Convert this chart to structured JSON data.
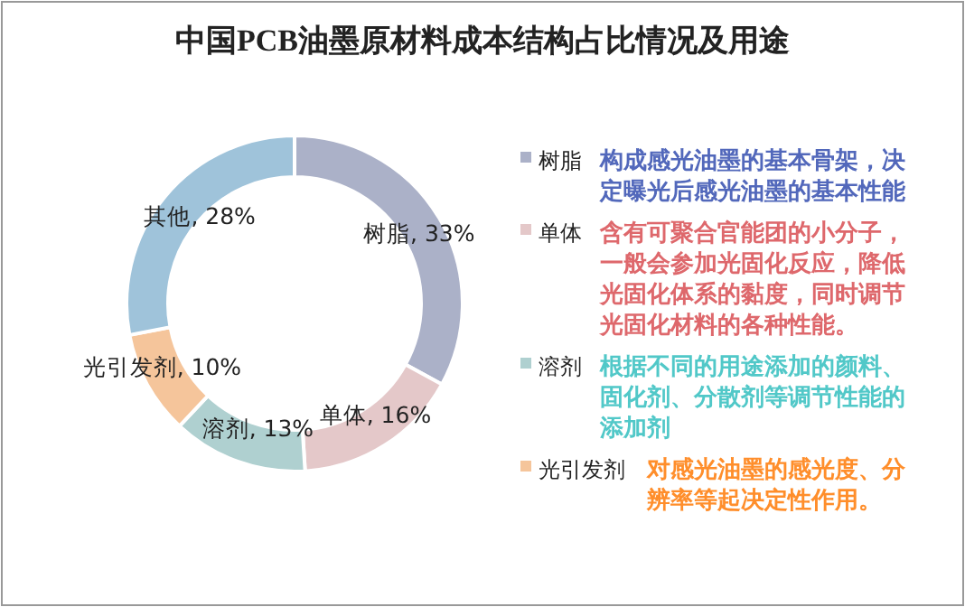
{
  "chart_data": {
    "type": "donut",
    "title": "中国PCB油墨原材料成本结构占比情况及用途",
    "categories": [
      "树脂",
      "单体",
      "溶剂",
      "光引发剂",
      "其他"
    ],
    "values": [
      33,
      16,
      13,
      10,
      28
    ],
    "colors": [
      "#abb1c8",
      "#e4c8c9",
      "#afd0d0",
      "#f5c59b",
      "#9fc3da"
    ],
    "value_labels": [
      ", 33%",
      ", 16%",
      ", 13%",
      ", 10%",
      ", 28%"
    ],
    "legend": "right",
    "annotations": [
      "构成感光油墨的基本骨架，决定曝光后感光油墨的基本性能",
      "含有可聚合官能团的小分子，一般会参加光固化反应，降低光固化体系的黏度，同时调节光固化材料的各种性能。",
      "根据不同的用途添加的颜料、固化剂、分散剂等调节性能的添加剂",
      "对感光油墨的感光度、分辨率等起决定性作用。"
    ]
  }
}
